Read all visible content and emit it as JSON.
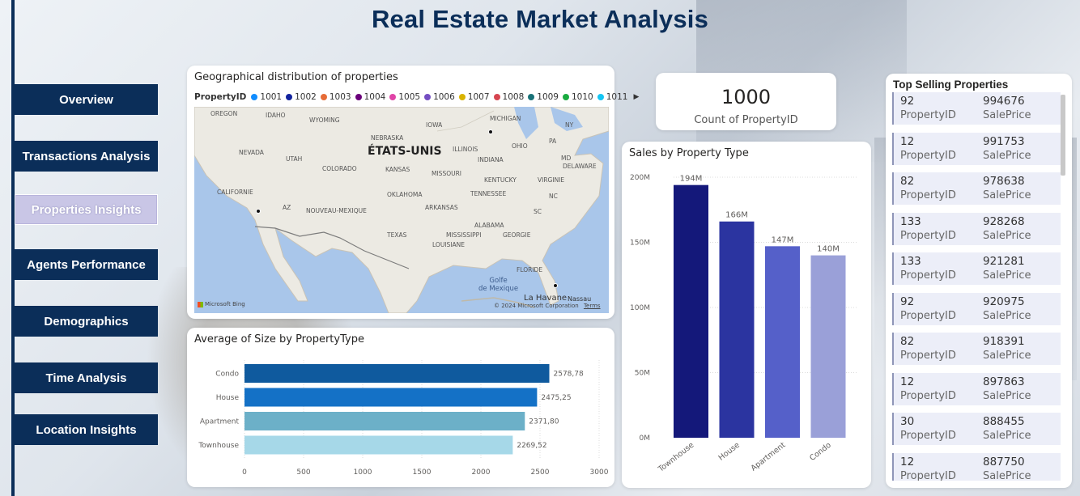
{
  "title": "Real Estate Market Analysis",
  "nav": [
    {
      "label": "Overview",
      "active": false
    },
    {
      "label": "Transactions Analysis",
      "active": false
    },
    {
      "label": "Properties Insights",
      "active": true
    },
    {
      "label": "Agents Performance",
      "active": false
    },
    {
      "label": "Demographics",
      "active": false
    },
    {
      "label": "Time Analysis",
      "active": false
    },
    {
      "label": "Location Insights",
      "active": false
    }
  ],
  "map": {
    "title": "Geographical distribution of properties",
    "legend_title": "PropertyID",
    "legend": [
      {
        "label": "1001",
        "color": "#118dff"
      },
      {
        "label": "1002",
        "color": "#12239e"
      },
      {
        "label": "1003",
        "color": "#e66c37"
      },
      {
        "label": "1004",
        "color": "#6b007b"
      },
      {
        "label": "1005",
        "color": "#e044a7"
      },
      {
        "label": "1006",
        "color": "#744ec2"
      },
      {
        "label": "1007",
        "color": "#d9b300"
      },
      {
        "label": "1008",
        "color": "#d64550"
      },
      {
        "label": "1009",
        "color": "#197278"
      },
      {
        "label": "1010",
        "color": "#1aab40"
      },
      {
        "label": "1011",
        "color": "#15c6f4"
      }
    ],
    "labels": {
      "country": "ÉTATS-UNIS",
      "oregon": "OREGON",
      "idaho": "IDAHO",
      "wyoming": "WYOMING",
      "nebraska": "NEBRASKA",
      "iowa": "IOWA",
      "michigan": "MICHIGAN",
      "ny": "NY",
      "nevada": "NEVADA",
      "utah": "UTAH",
      "illinois": "ILLINOIS",
      "ohio": "OHIO",
      "pa": "PA",
      "colorado": "COLORADO",
      "kansas": "KANSAS",
      "missouri": "MISSOURI",
      "indiana": "INDIANA",
      "md": "MD",
      "delaware": "DELAWARE",
      "california": "CALIFORNIE",
      "kentucky": "KENTUCKY",
      "virginie": "VIRGINIE",
      "oklahoma": "OKLAHOMA",
      "tennessee": "TENNESSEE",
      "nc": "NC",
      "az": "AZ",
      "new_mexico": "NOUVEAU-MEXIQUE",
      "arkansas": "ARKANSAS",
      "sc": "SC",
      "alabama": "ALABAMA",
      "texas": "TEXAS",
      "mississippi": "MISSISSIPPI",
      "georgie": "GEORGIE",
      "louisiane": "LOUISIANE",
      "floride": "FLORIDE",
      "gulf": "Golfe\nde Mexique",
      "havana": "La Havane",
      "nassau": "Nassau"
    },
    "bing": "Microsoft Bing",
    "copyright": "© 2024 Microsoft Corporation",
    "terms": "Terms"
  },
  "kpi": {
    "value": "1000",
    "label": "Count of PropertyID"
  },
  "size_chart": {
    "title": "Average of Size by PropertyType"
  },
  "sales_chart": {
    "title": "Sales by Property Type"
  },
  "table": {
    "title": "Top Selling Properties",
    "col1_label": "PropertyID",
    "col2_label": "SalePrice",
    "rows": [
      {
        "id": "92",
        "price": "994676"
      },
      {
        "id": "12",
        "price": "991753"
      },
      {
        "id": "82",
        "price": "978638"
      },
      {
        "id": "133",
        "price": "928268"
      },
      {
        "id": "133",
        "price": "921281"
      },
      {
        "id": "92",
        "price": "920975"
      },
      {
        "id": "82",
        "price": "918391"
      },
      {
        "id": "12",
        "price": "897863"
      },
      {
        "id": "30",
        "price": "888455"
      },
      {
        "id": "12",
        "price": "887750"
      }
    ]
  },
  "chart_data": [
    {
      "type": "bar",
      "orientation": "horizontal",
      "title": "Average of Size by PropertyType",
      "categories": [
        "Condo",
        "House",
        "Apartment",
        "Townhouse"
      ],
      "values": [
        2578.78,
        2475.25,
        2371.8,
        2269.52
      ],
      "value_labels": [
        "2578,78",
        "2475,25",
        "2371,80",
        "2269,52"
      ],
      "colors": [
        "#0f5a9e",
        "#1471c6",
        "#6cb0c8",
        "#a6d8e8"
      ],
      "xticks": [
        "0",
        "500",
        "1000",
        "1500",
        "2000",
        "2500",
        "3000"
      ],
      "xlim": [
        0,
        3000
      ],
      "grid": true
    },
    {
      "type": "bar",
      "orientation": "vertical",
      "title": "Sales by Property Type",
      "categories": [
        "Townhouse",
        "House",
        "Apartment",
        "Condo"
      ],
      "values": [
        194,
        166,
        147,
        140
      ],
      "unit": "M",
      "value_labels": [
        "194M",
        "166M",
        "147M",
        "140M"
      ],
      "colors": [
        "#14187a",
        "#2b34a0",
        "#5560c9",
        "#9aa0d8"
      ],
      "yticks": [
        "0M",
        "50M",
        "100M",
        "150M",
        "200M"
      ],
      "ylim": [
        0,
        200
      ],
      "grid": true
    }
  ]
}
